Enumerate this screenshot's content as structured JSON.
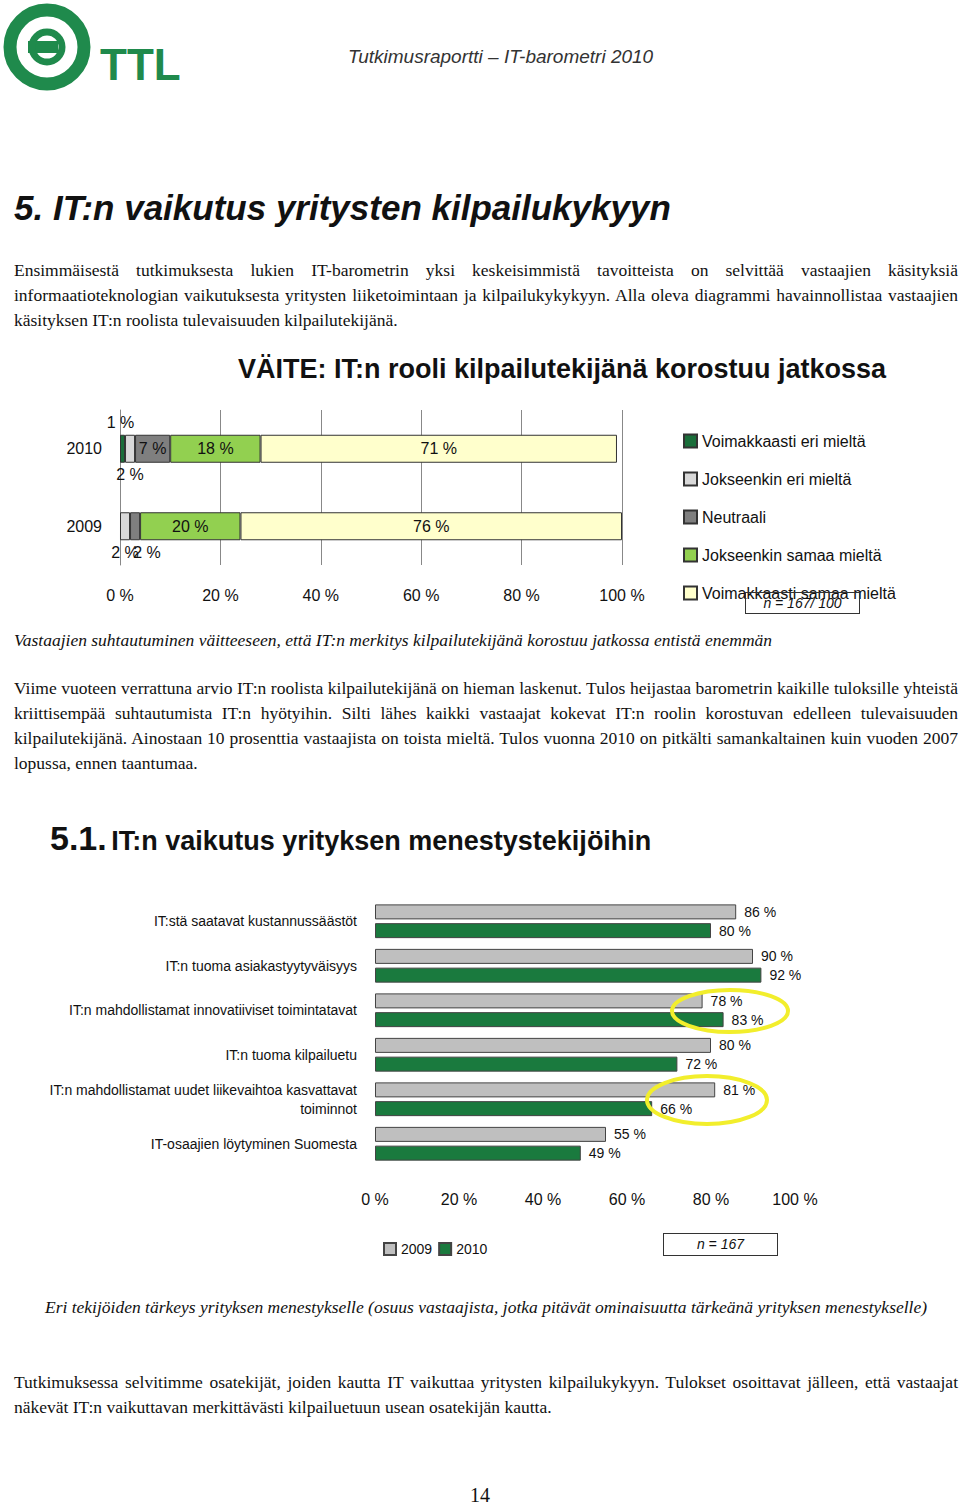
{
  "header": {
    "logo_text": "TTL",
    "running_title": "Tutkimusraportti – IT-barometri 2010"
  },
  "heading": "5. IT:n vaikutus yritysten kilpailukykyyn",
  "paragraphs": [
    "Ensimmäisestä tutkimuksesta lukien IT-barometrin yksi keskeisimmistä tavoitteista on selvittää vastaajien käsityksiä informaatioteknologian vaikutuksesta yritysten liiketoimintaan ja kilpailukykykyyn. Alla oleva diagrammi havainnollistaa vastaajien käsityksen IT:n roolista tulevaisuuden kilpailutekijänä.",
    "Viime vuoteen verrattuna arvio IT:n roolista kilpailutekijänä on hieman laskenut. Tulos heijastaa barometrin kaikille tuloksille yhteistä kriittisempää suhtautumista IT:n hyötyihin. Silti lähes kaikki vastaajat kokevat IT:n roolin korostuvan edelleen tulevaisuuden kilpailutekijänä. Ainostaan 10 prosenttia vastaajista on toista mieltä. Tulos vuonna 2010 on pitkälti samankaltainen kuin vuoden 2007 lopussa, ennen taantumaa.",
    "Tutkimuksessa selvitimme osatekijät, joiden kautta IT vaikuttaa yritysten kilpailukykyyn. Tulokset osoittavat jälleen, että vastaajat näkevät IT:n vaikuttavan merkittävästi kilpailuetuun usean osatekijän kautta."
  ],
  "captions": [
    "Vastaajien suhtautuminen väitteeseen, että IT:n merkitys kilpailutekijänä korostuu jatkossa entistä enemmän",
    "Eri tekijöiden tärkeys yrityksen menestykselle (osuus vastaajista, jotka pitävät ominaisuutta tärkeänä yrityksen menestykselle)"
  ],
  "subheading": {
    "number": "5.1.",
    "text": "IT:n vaikutus yrityksen menestystekijöihin"
  },
  "page_number": 14,
  "chart_data": [
    {
      "type": "bar",
      "title": "VÄITE: IT:n rooli kilpailutekijänä korostuu jatkossa",
      "orientation": "horizontal",
      "stacked": true,
      "data_labels": true,
      "grid": true,
      "legend": "right",
      "annotations": [
        "n = 167/ 100"
      ],
      "categories": [
        "2010",
        "2009"
      ],
      "series": [
        {
          "name": "Voimakkaasti eri mieltä",
          "color": "#1a6e3a",
          "values": [
            1,
            null
          ],
          "value_labels": [
            "1 %",
            null
          ]
        },
        {
          "name": "Jokseenkin eri mieltä",
          "color": "#d9d9d9",
          "values": [
            2,
            2
          ],
          "value_labels": [
            "2 %",
            "2 %"
          ]
        },
        {
          "name": "Neutraali",
          "color": "#7f7f7f",
          "values": [
            7,
            2
          ],
          "value_labels": [
            "7 %",
            "2 %"
          ]
        },
        {
          "name": "Jokseenkin samaa mieltä",
          "color": "#92d050",
          "values": [
            18,
            20
          ],
          "value_labels": [
            "18 %",
            "20 %"
          ]
        },
        {
          "name": "Voimakkaasti samaa mieltä",
          "color": "#ffffcc",
          "values": [
            71,
            76
          ],
          "value_labels": [
            "71 %",
            "76 %"
          ]
        }
      ],
      "xlim": [
        0,
        100
      ],
      "xticks": [
        {
          "value": 0,
          "label": "0 %"
        },
        {
          "value": 20,
          "label": "20 %"
        },
        {
          "value": 40,
          "label": "40 %"
        },
        {
          "value": 60,
          "label": "60 %"
        },
        {
          "value": 80,
          "label": "80 %"
        },
        {
          "value": 100,
          "label": "100 %"
        }
      ]
    },
    {
      "type": "bar",
      "orientation": "horizontal",
      "data_labels": true,
      "grid": false,
      "legend": "bottom",
      "annotations": [
        "n = 167"
      ],
      "categories": [
        "IT:stä saatavat kustannussäästöt",
        "IT:n tuoma asiakastyytyväisyys",
        "IT:n mahdollistamat innovatiiviset toimintatavat",
        "IT:n tuoma kilpailuetu",
        "IT:n mahdollistamat uudet liikevaihtoa kasvattavat\ntoiminnot",
        "IT-osaajien löytyminen Suomesta"
      ],
      "series": [
        {
          "name": "2009",
          "color": "#bfbfbf",
          "values": [
            86,
            90,
            78,
            80,
            81,
            55
          ],
          "value_labels": [
            "86 %",
            "90 %",
            "78 %",
            "80 %",
            "81 %",
            "55 %"
          ]
        },
        {
          "name": "2010",
          "color": "#1a7a3e",
          "values": [
            80,
            92,
            83,
            72,
            66,
            49
          ],
          "value_labels": [
            "80 %",
            "92 %",
            "83 %",
            "72 %",
            "66 %",
            "49 %"
          ]
        }
      ],
      "xlim": [
        0,
        100
      ],
      "xticks": [
        {
          "value": 0,
          "label": "0 %"
        },
        {
          "value": 20,
          "label": "20 %"
        },
        {
          "value": 40,
          "label": "40 %"
        },
        {
          "value": 60,
          "label": "60 %"
        },
        {
          "value": 80,
          "label": "80 %"
        },
        {
          "value": 100,
          "label": "100 %"
        }
      ]
    }
  ]
}
